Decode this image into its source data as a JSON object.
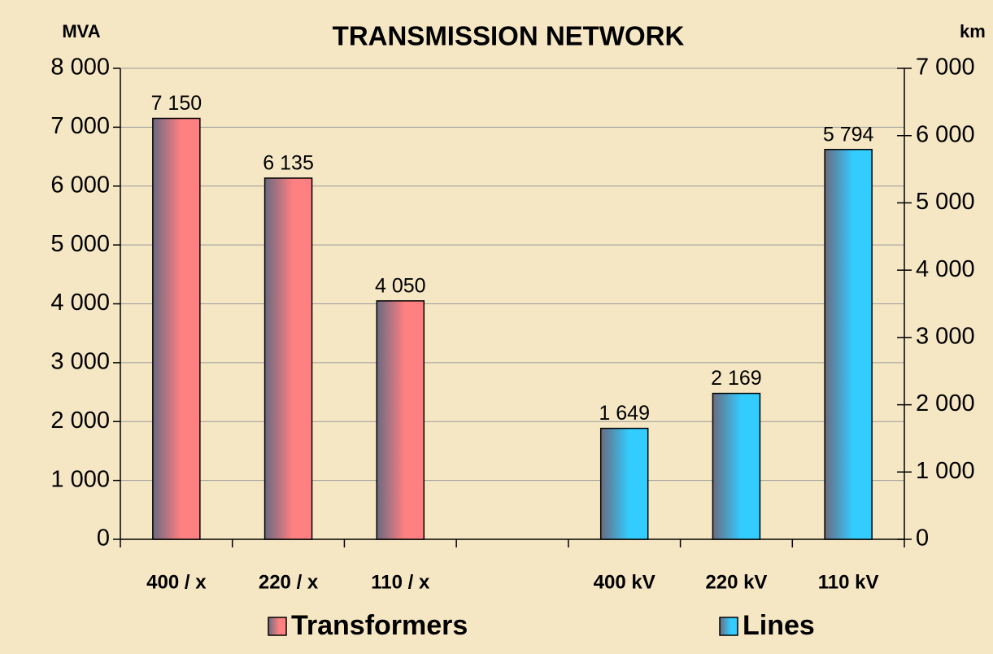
{
  "chart_data": {
    "type": "bar",
    "title": "TRANSMISSION NETWORK",
    "y_label": "MVA",
    "y2_label": "km",
    "categories": [
      "400 / x",
      "220 / x",
      "110 / x",
      null,
      "400 kV",
      "220 kV",
      "110 kV"
    ],
    "series": [
      {
        "name": "Transformers",
        "color": "#ff8080",
        "values": [
          7150,
          6135,
          4050,
          null,
          null,
          null,
          null
        ],
        "value_labels": [
          "7 150",
          "6 135",
          "4 050",
          null,
          null,
          null,
          null
        ]
      },
      {
        "name": "Lines",
        "color": "#33ccff",
        "axis": "y2",
        "values": [
          null,
          null,
          null,
          null,
          1649,
          2169,
          5794
        ],
        "value_labels": [
          null,
          null,
          null,
          null,
          "1 649",
          "2 169",
          "5 794"
        ]
      }
    ],
    "ylim": [
      0,
      8000
    ],
    "yticks": [
      0,
      {
        "value": 1000,
        "label": "1 000"
      },
      {
        "value": 2000,
        "label": "2 000"
      },
      {
        "value": 3000,
        "label": "3 000"
      },
      {
        "value": 4000,
        "label": "4 000"
      },
      {
        "value": 5000,
        "label": "5 000"
      },
      {
        "value": 6000,
        "label": "6 000"
      },
      {
        "value": 7000,
        "label": "7 000"
      },
      {
        "value": 8000,
        "label": "8 000"
      }
    ],
    "y2lim": [
      0,
      7000
    ],
    "y2ticks": [
      0,
      {
        "value": 1000,
        "label": "1 000"
      },
      {
        "value": 2000,
        "label": "2 000"
      },
      {
        "value": 3000,
        "label": "3 000"
      },
      {
        "value": 4000,
        "label": "4 000"
      },
      {
        "value": 5000,
        "label": "5 000"
      },
      {
        "value": 6000,
        "label": "6 000"
      },
      {
        "value": 7000,
        "label": "7 000"
      }
    ],
    "grid": true,
    "legend": "bottom"
  }
}
